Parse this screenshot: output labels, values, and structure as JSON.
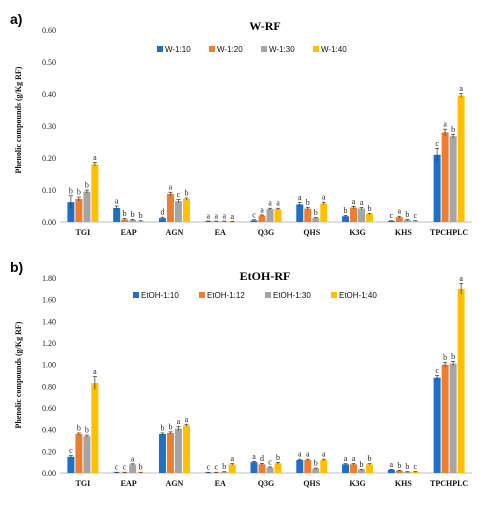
{
  "chart_data": [
    {
      "type": "bar",
      "panel_label": "a)",
      "title": "W-RF",
      "ylabel": "Phenolic compounds (g/Kg RF)",
      "ylim": [
        0,
        0.6
      ],
      "yticks": [
        "0.00",
        "0.10",
        "0.20",
        "0.30",
        "0.40",
        "0.50",
        "0.60"
      ],
      "ytick_values": [
        0,
        0.1,
        0.2,
        0.3,
        0.4,
        0.5,
        0.6
      ],
      "categories": [
        "TGI",
        "EAP",
        "AGN",
        "EA",
        "Q3G",
        "QHS",
        "K3G",
        "KHS",
        "TPCHPLC"
      ],
      "legend_position": "top",
      "series": [
        {
          "name": "W-1:10",
          "color": "#1f6fc5",
          "values": [
            0.062,
            0.044,
            0.012,
            0.002,
            0.005,
            0.055,
            0.018,
            0.003,
            0.21
          ],
          "errors": [
            0.02,
            0.006,
            0.003,
            0.001,
            0.002,
            0.006,
            0.003,
            0.001,
            0.02
          ],
          "letters": [
            "b",
            "a",
            "d",
            "a",
            "c",
            "a",
            "b",
            "c",
            "c"
          ]
        },
        {
          "name": "W-1:20",
          "color": "#ed7d31",
          "values": [
            0.072,
            0.008,
            0.088,
            0.002,
            0.02,
            0.042,
            0.045,
            0.015,
            0.28
          ],
          "errors": [
            0.006,
            0.003,
            0.005,
            0.001,
            0.002,
            0.004,
            0.004,
            0.003,
            0.01
          ],
          "letters": [
            "b",
            "b",
            "a",
            "a",
            "a",
            "b",
            "a",
            "a",
            "a"
          ]
        },
        {
          "name": "W-1:30",
          "color": "#a5a5a5",
          "values": [
            0.095,
            0.006,
            0.065,
            0.002,
            0.04,
            0.012,
            0.042,
            0.006,
            0.268
          ],
          "errors": [
            0.005,
            0.002,
            0.005,
            0.001,
            0.003,
            0.002,
            0.003,
            0.002,
            0.006
          ],
          "letters": [
            "b",
            "b",
            "c",
            "a",
            "a",
            "b",
            "a",
            "b",
            "b"
          ]
        },
        {
          "name": "W-1:40",
          "color": "#ffc000",
          "values": [
            0.18,
            0.003,
            0.072,
            0.001,
            0.04,
            0.058,
            0.025,
            0.003,
            0.395
          ],
          "errors": [
            0.006,
            0.001,
            0.003,
            0.001,
            0.003,
            0.004,
            0.002,
            0.001,
            0.006
          ],
          "letters": [
            "a",
            "b",
            "b",
            "a",
            "a",
            "a",
            "b",
            "c",
            "a"
          ]
        }
      ]
    },
    {
      "type": "bar",
      "panel_label": "b)",
      "title": "EtOH-RF",
      "ylabel": "Phenolic compounds (g/Kg RF)",
      "ylim": [
        0,
        1.8
      ],
      "yticks": [
        "0.00",
        "0.20",
        "0.40",
        "0.60",
        "0.80",
        "1.00",
        "1.20",
        "1.40",
        "1.60",
        "1.80"
      ],
      "ytick_values": [
        0,
        0.2,
        0.4,
        0.6,
        0.8,
        1.0,
        1.2,
        1.4,
        1.6,
        1.8
      ],
      "categories": [
        "TGI",
        "EAP",
        "AGN",
        "EA",
        "Q3G",
        "QHS",
        "K3G",
        "KHS",
        "TPCHPLC"
      ],
      "legend_position": "top",
      "series": [
        {
          "name": "EtOH-1:10",
          "color": "#1f6fc5",
          "values": [
            0.15,
            0.005,
            0.36,
            0.005,
            0.1,
            0.12,
            0.08,
            0.03,
            0.88
          ],
          "errors": [
            0.01,
            0.002,
            0.01,
            0.002,
            0.008,
            0.008,
            0.006,
            0.004,
            0.02
          ],
          "letters": [
            "c",
            "c",
            "b",
            "c",
            "a",
            "a",
            "a",
            "a",
            "c"
          ]
        },
        {
          "name": "EtOH-1:12",
          "color": "#ed7d31",
          "values": [
            0.36,
            0.005,
            0.37,
            0.005,
            0.08,
            0.12,
            0.08,
            0.02,
            1.0
          ],
          "errors": [
            0.01,
            0.002,
            0.01,
            0.002,
            0.008,
            0.008,
            0.006,
            0.004,
            0.02
          ],
          "letters": [
            "b",
            "c",
            "b",
            "c",
            "d",
            "a",
            "a",
            "b",
            "b"
          ]
        },
        {
          "name": "EtOH-1:30",
          "color": "#a5a5a5",
          "values": [
            0.34,
            0.08,
            0.41,
            0.01,
            0.05,
            0.04,
            0.03,
            0.01,
            1.01
          ],
          "errors": [
            0.01,
            0.005,
            0.02,
            0.002,
            0.006,
            0.005,
            0.004,
            0.003,
            0.02
          ],
          "letters": [
            "b",
            "a",
            "a",
            "b",
            "c",
            "b",
            "b",
            "b",
            "b"
          ]
        },
        {
          "name": "EtOH-1:40",
          "color": "#ffc000",
          "values": [
            0.83,
            0.005,
            0.44,
            0.08,
            0.09,
            0.12,
            0.08,
            0.01,
            1.7
          ],
          "errors": [
            0.06,
            0.002,
            0.01,
            0.006,
            0.008,
            0.008,
            0.006,
            0.003,
            0.05
          ],
          "letters": [
            "a",
            "b",
            "a",
            "a",
            "b",
            "a",
            "b",
            "c",
            "a"
          ]
        }
      ]
    }
  ]
}
